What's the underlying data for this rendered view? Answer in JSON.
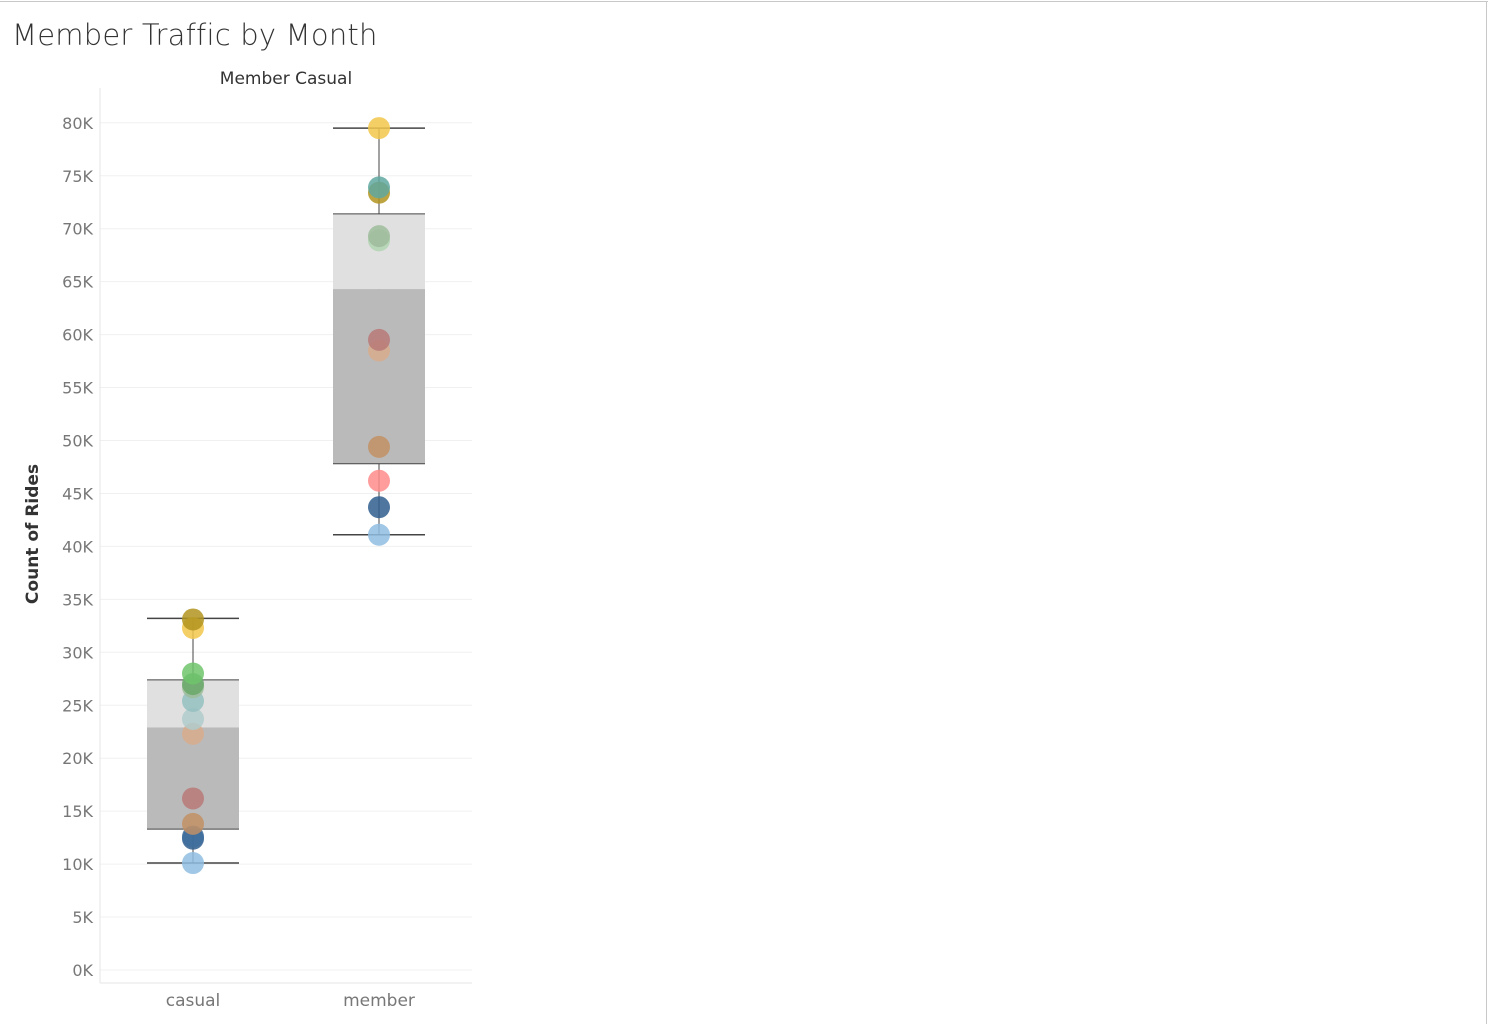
{
  "title": "Member Traffic by Month",
  "chart_data": {
    "type": "scatter",
    "subtype": "box-plot-with-points",
    "title": "Member Traffic by Month",
    "column_header": "Member Casual",
    "ylabel": "Count of Rides",
    "xlabel": "",
    "ylim": [
      0,
      85000
    ],
    "yticks": [
      0,
      5000,
      10000,
      15000,
      20000,
      25000,
      30000,
      35000,
      40000,
      45000,
      50000,
      55000,
      60000,
      65000,
      70000,
      75000,
      80000
    ],
    "ytick_labels": [
      "0K",
      "5K",
      "10K",
      "15K",
      "20K",
      "25K",
      "30K",
      "35K",
      "40K",
      "45K",
      "50K",
      "55K",
      "60K",
      "65K",
      "70K",
      "75K",
      "80K"
    ],
    "grid": true,
    "categories": [
      "casual",
      "member"
    ],
    "boxes": [
      {
        "category": "casual",
        "whisker_low": 10100,
        "q1": 13300,
        "median": 22900,
        "q3": 27400,
        "whisker_high": 33200
      },
      {
        "category": "member",
        "whisker_low": 41100,
        "q1": 47800,
        "median": 64300,
        "q3": 71400,
        "whisker_high": 79500
      }
    ],
    "points": {
      "casual": [
        {
          "value": 10100,
          "color": "#8fbde0"
        },
        {
          "value": 12400,
          "color": "#2f5e8e"
        },
        {
          "value": 12600,
          "color": "#3f6e9e"
        },
        {
          "value": 13800,
          "color": "#c29165"
        },
        {
          "value": 16200,
          "color": "#b87978"
        },
        {
          "value": 22300,
          "color": "#d8ac8c"
        },
        {
          "value": 23700,
          "color": "#b0cbcb"
        },
        {
          "value": 25400,
          "color": "#94c0c0"
        },
        {
          "value": 26700,
          "color": "#9ebc9a"
        },
        {
          "value": 27000,
          "color": "#6aa86a"
        },
        {
          "value": 28000,
          "color": "#6fc46b"
        },
        {
          "value": 32300,
          "color": "#f2c74b"
        },
        {
          "value": 33100,
          "color": "#b2941f"
        }
      ],
      "member": [
        {
          "value": 41100,
          "color": "#8fbde0"
        },
        {
          "value": 43700,
          "color": "#2f5e8e"
        },
        {
          "value": 46200,
          "color": "#ff8c8c"
        },
        {
          "value": 49400,
          "color": "#c29165"
        },
        {
          "value": 58500,
          "color": "#d8ac8c"
        },
        {
          "value": 59500,
          "color": "#b87978"
        },
        {
          "value": 68900,
          "color": "#b0d4b0"
        },
        {
          "value": 69300,
          "color": "#9ebc9a"
        },
        {
          "value": 73400,
          "color": "#b2941f"
        },
        {
          "value": 73900,
          "color": "#5fa8a0"
        },
        {
          "value": 79500,
          "color": "#f2c74b"
        }
      ]
    },
    "colors": {
      "box_upper": "#e0e0e0",
      "box_lower": "#bababa",
      "whisker": "#444444",
      "grid": "#f0f0f0",
      "axis_text": "#777777"
    }
  }
}
